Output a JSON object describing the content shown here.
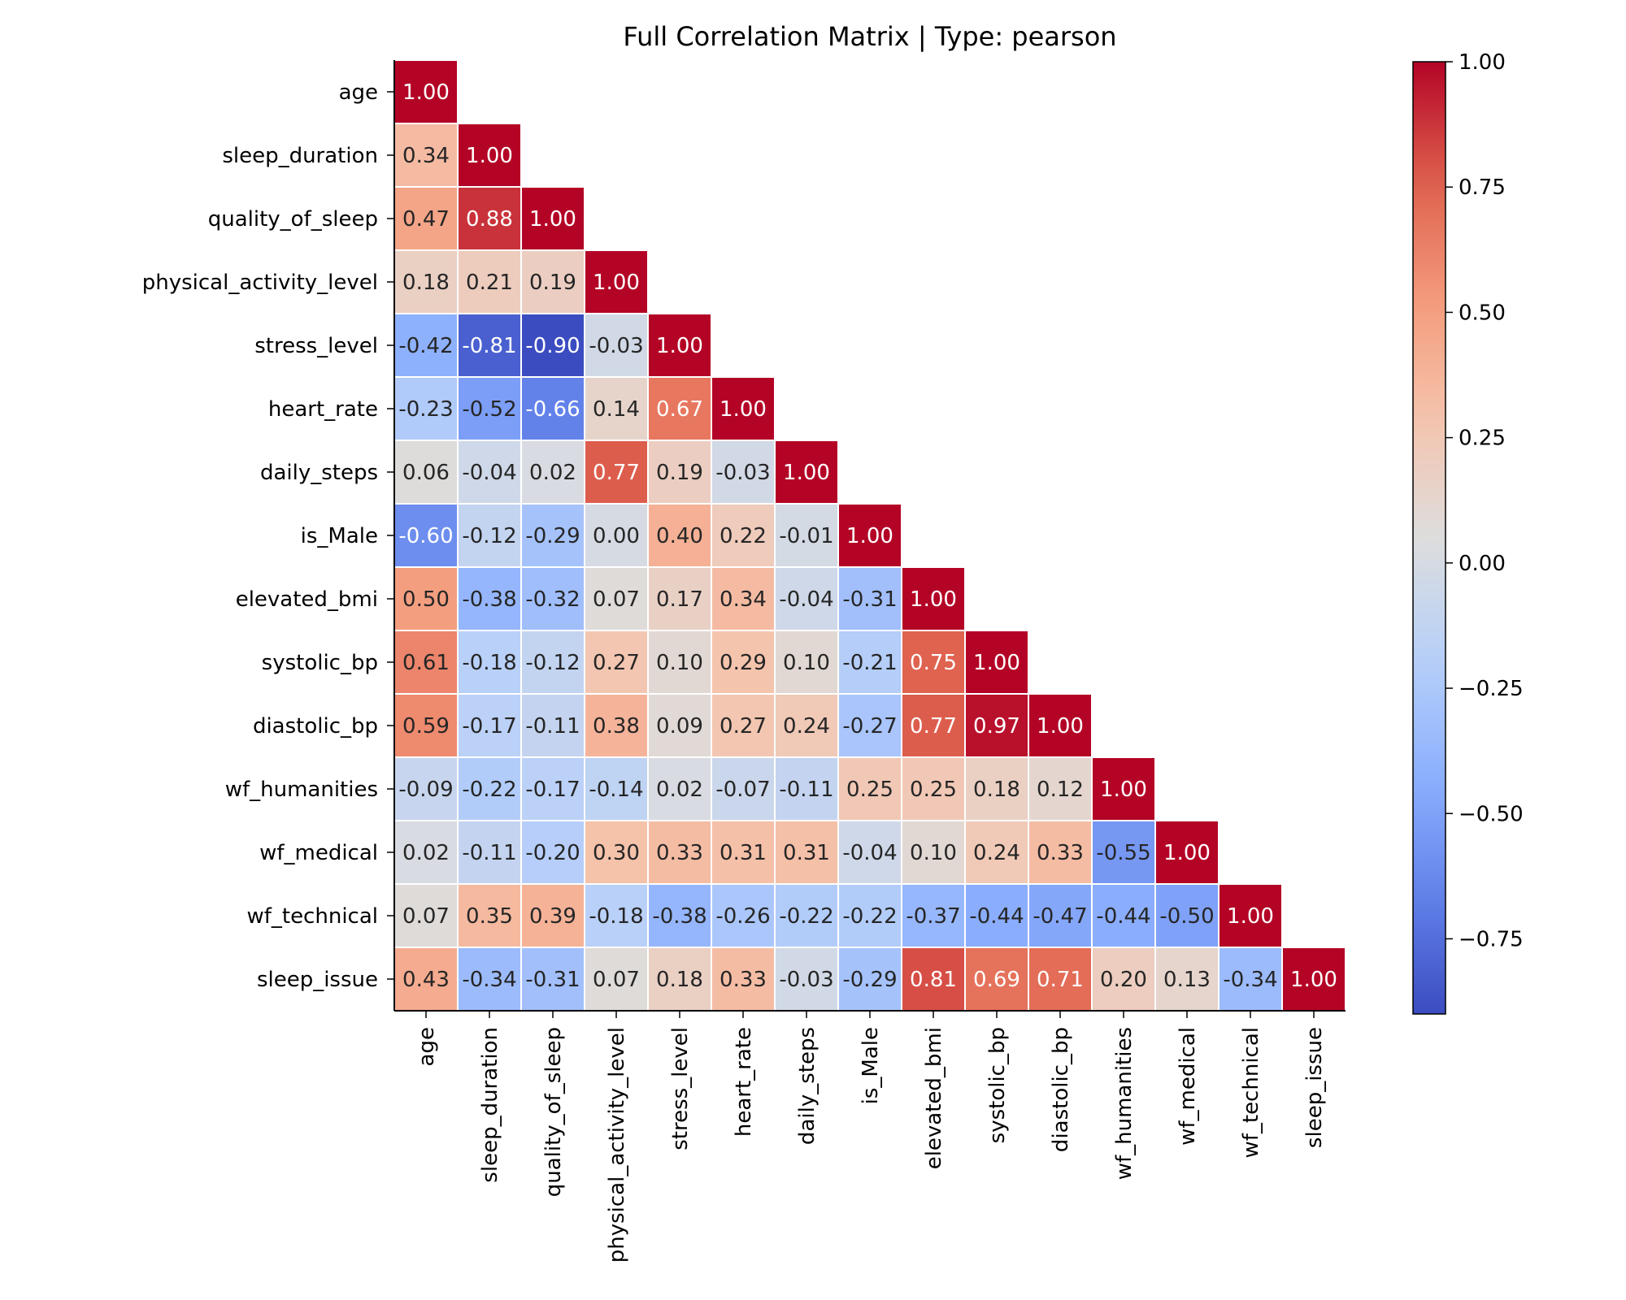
{
  "chart_data": {
    "type": "heatmap",
    "title": "Full Correlation Matrix | Type: pearson",
    "colormap": "coolwarm",
    "mask": "lower-triangle-including-diagonal",
    "variables": [
      "age",
      "sleep_duration",
      "quality_of_sleep",
      "physical_activity_level",
      "stress_level",
      "heart_rate",
      "daily_steps",
      "is_Male",
      "elevated_bmi",
      "systolic_bp",
      "diastolic_bp",
      "wf_humanities",
      "wf_medical",
      "wf_technical",
      "sleep_issue"
    ],
    "values": [
      [
        1.0
      ],
      [
        0.34,
        1.0
      ],
      [
        0.47,
        0.88,
        1.0
      ],
      [
        0.18,
        0.21,
        0.19,
        1.0
      ],
      [
        -0.42,
        -0.81,
        -0.9,
        -0.03,
        1.0
      ],
      [
        -0.23,
        -0.52,
        -0.66,
        0.14,
        0.67,
        1.0
      ],
      [
        0.06,
        -0.04,
        0.02,
        0.77,
        0.19,
        -0.03,
        1.0
      ],
      [
        -0.6,
        -0.12,
        -0.29,
        0.0,
        0.4,
        0.22,
        -0.01,
        1.0
      ],
      [
        0.5,
        -0.38,
        -0.32,
        0.07,
        0.17,
        0.34,
        -0.04,
        -0.31,
        1.0
      ],
      [
        0.61,
        -0.18,
        -0.12,
        0.27,
        0.1,
        0.29,
        0.1,
        -0.21,
        0.75,
        1.0
      ],
      [
        0.59,
        -0.17,
        -0.11,
        0.38,
        0.09,
        0.27,
        0.24,
        -0.27,
        0.77,
        0.97,
        1.0
      ],
      [
        -0.09,
        -0.22,
        -0.17,
        -0.14,
        0.02,
        -0.07,
        -0.11,
        0.25,
        0.25,
        0.18,
        0.12,
        1.0
      ],
      [
        0.02,
        -0.11,
        -0.2,
        0.3,
        0.33,
        0.31,
        0.31,
        -0.04,
        0.1,
        0.24,
        0.33,
        -0.55,
        1.0
      ],
      [
        0.07,
        0.35,
        0.39,
        -0.18,
        -0.38,
        -0.26,
        -0.22,
        -0.22,
        -0.37,
        -0.44,
        -0.47,
        -0.44,
        -0.5,
        1.0
      ],
      [
        0.43,
        -0.34,
        -0.31,
        0.07,
        0.18,
        0.33,
        -0.03,
        -0.29,
        0.81,
        0.69,
        0.71,
        0.2,
        0.13,
        -0.34,
        1.0
      ]
    ],
    "value_format": "0.00",
    "colorbar": {
      "vmin": -0.9,
      "vmax": 1.0,
      "ticks": [
        1.0,
        0.75,
        0.5,
        0.25,
        0.0,
        -0.25,
        -0.5,
        -0.75
      ],
      "tick_labels": [
        "1.00",
        "0.75",
        "0.50",
        "0.25",
        "0.00",
        "−0.25",
        "−0.50",
        "−0.75"
      ]
    },
    "grid": false,
    "legend": "colorbar-right"
  }
}
